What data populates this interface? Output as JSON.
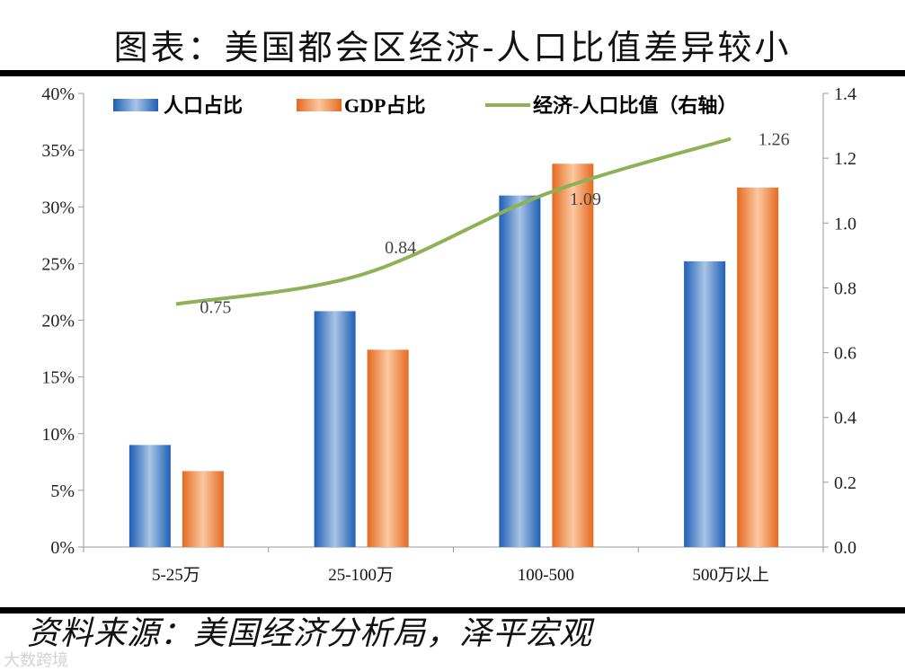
{
  "title": "图表：美国都会区经济-人口比值差异较小",
  "source": "资料来源：美国经济分析局，泽平宏观",
  "watermark": "大数跨境",
  "chart_data": {
    "type": "bar+line",
    "categories": [
      "5-25万",
      "25-100万",
      "100-500",
      "500万以上"
    ],
    "series": [
      {
        "name": "人口占比",
        "type": "bar",
        "axis": "left",
        "values": [
          9.0,
          20.8,
          31.0,
          25.2
        ],
        "color": "#2e6fbf"
      },
      {
        "name": "GDP占比",
        "type": "bar",
        "axis": "left",
        "values": [
          6.7,
          17.4,
          33.8,
          31.7
        ],
        "color": "#e8772e"
      },
      {
        "name": "经济-人口比值（右轴）",
        "type": "line",
        "axis": "right",
        "values": [
          0.75,
          0.84,
          1.09,
          1.26
        ],
        "data_labels": [
          "0.75",
          "0.84",
          "1.09",
          "1.26"
        ],
        "color": "#8db255"
      }
    ],
    "y_left": {
      "lim": [
        0,
        40
      ],
      "ticks": [
        "0%",
        "5%",
        "10%",
        "15%",
        "20%",
        "25%",
        "30%",
        "35%",
        "40%"
      ]
    },
    "y_right": {
      "lim": [
        0,
        1.4
      ],
      "ticks": [
        "0.0",
        "0.2",
        "0.4",
        "0.6",
        "0.8",
        "1.0",
        "1.2",
        "1.4"
      ]
    },
    "legend": "top",
    "grid": false
  }
}
